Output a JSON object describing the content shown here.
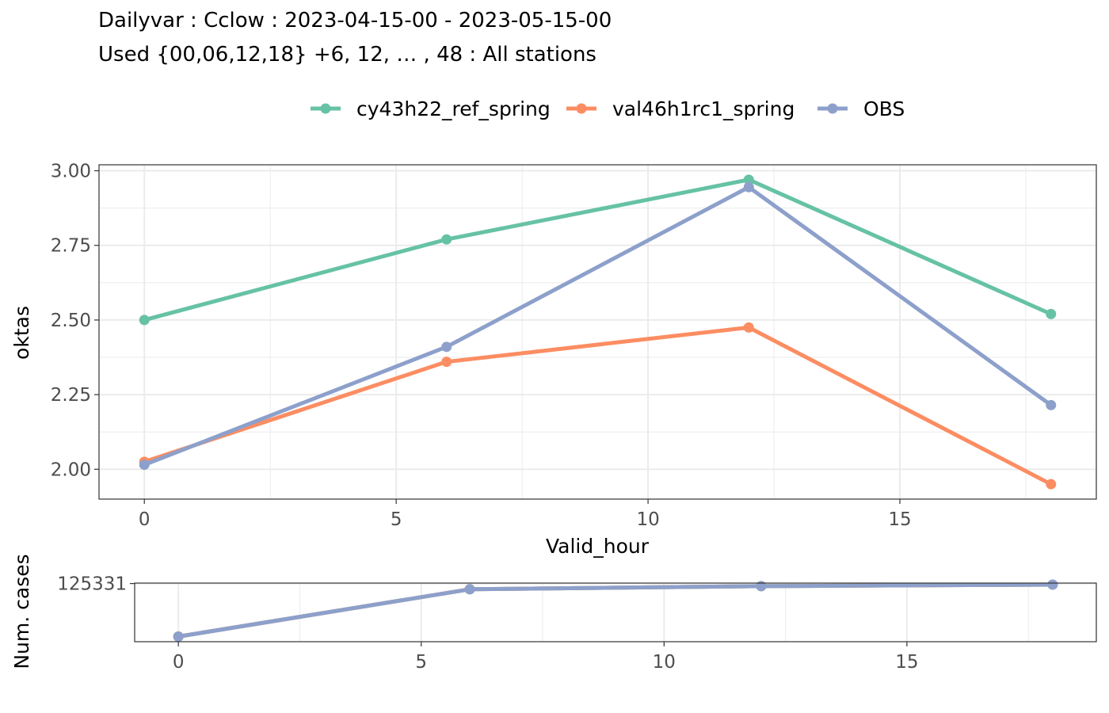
{
  "title": {
    "line1": "Dailyvar : Cclow : 2023-04-15-00 - 2023-05-15-00",
    "line2": "Used {00,06,12,18} +6, 12, … , 48 : All stations"
  },
  "chart_data": [
    {
      "type": "line",
      "title": "",
      "xlabel": "Valid_hour",
      "ylabel": "oktas",
      "x": [
        0,
        6,
        12,
        18
      ],
      "xlim": [
        -0.9,
        18.9
      ],
      "ylim": [
        1.9,
        3.02
      ],
      "xticks": [
        0,
        5,
        10,
        15
      ],
      "yticks": [
        2.0,
        2.25,
        2.5,
        2.75,
        3.0
      ],
      "ytick_labels": [
        "2.00",
        "2.25",
        "2.50",
        "2.75",
        "3.00"
      ],
      "grid": true,
      "legend_position": "top",
      "series": [
        {
          "name": "cy43h22_ref_spring",
          "color": "#66c2a5",
          "values": [
            2.5,
            2.77,
            2.97,
            2.52
          ]
        },
        {
          "name": "val46h1rc1_spring",
          "color": "#fc8d62",
          "values": [
            2.025,
            2.36,
            2.475,
            1.95
          ]
        },
        {
          "name": "OBS",
          "color": "#8da0cb",
          "values": [
            2.015,
            2.41,
            2.945,
            2.215
          ]
        }
      ]
    },
    {
      "type": "line",
      "title": "",
      "xlabel": "",
      "ylabel": "Num. cases",
      "x": [
        0,
        6,
        12,
        18
      ],
      "xlim": [
        -0.9,
        18.9
      ],
      "ylim": [
        124200,
        125340
      ],
      "xticks": [
        0,
        5,
        10,
        15
      ],
      "yticks": [
        125331
      ],
      "ytick_labels": [
        "125331"
      ],
      "grid": true,
      "series": [
        {
          "name": "cy43h22_ref_spring",
          "color": "#66c2a5",
          "values": [
            124300,
            125220,
            125280,
            125310
          ]
        },
        {
          "name": "val46h1rc1_spring",
          "color": "#fc8d62",
          "values": [
            124300,
            125220,
            125280,
            125310
          ]
        },
        {
          "name": "OBS",
          "color": "#8da0cb",
          "values": [
            124300,
            125220,
            125280,
            125310
          ]
        }
      ]
    }
  ]
}
